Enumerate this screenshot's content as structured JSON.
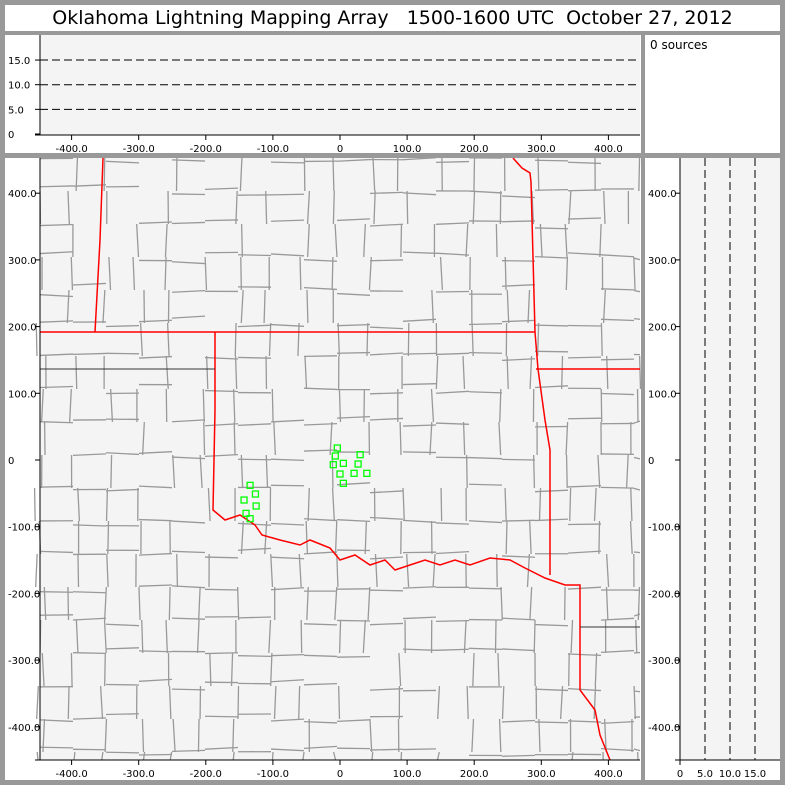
{
  "title": "Oklahoma Lightning Mapping Array   1500-1600 UTC  October 27, 2012",
  "source_count_label": "0 sources",
  "colors": {
    "background": "#999999",
    "plot_bg": "#f4f4f4",
    "state_border": "#ff0000",
    "county_border": "#999999",
    "source_marker": "#00ff00"
  },
  "chart_data": {
    "type": "scatter",
    "plan_view": {
      "x_ticks": [
        "-400.0",
        "-300.0",
        "-200.0",
        "-100.0",
        "0",
        "100.0",
        "200.0",
        "300.0",
        "400.0"
      ],
      "y_ticks": [
        "400.0",
        "300.0",
        "200.0",
        "100.0",
        "0",
        "-100.0",
        "-200.0",
        "-300.0",
        "-400.0"
      ],
      "xlim": [
        -450,
        445
      ],
      "ylim": [
        -445,
        450
      ],
      "points": [
        [
          -4,
          18
        ],
        [
          -7,
          6
        ],
        [
          -10,
          -7
        ],
        [
          5,
          -5
        ],
        [
          30,
          8
        ],
        [
          27,
          -6
        ],
        [
          0,
          -21
        ],
        [
          21,
          -20
        ],
        [
          40,
          -20
        ],
        [
          5,
          -35
        ],
        [
          -134,
          -38
        ],
        [
          -126,
          -51
        ],
        [
          -143,
          -60
        ],
        [
          -125,
          -69
        ],
        [
          -140,
          -80
        ],
        [
          -134,
          -88
        ]
      ]
    },
    "altitude_top": {
      "x_ticks": [
        "-400.0",
        "-300.0",
        "-200.0",
        "-100.0",
        "0",
        "100.0",
        "200.0",
        "300.0",
        "400.0"
      ],
      "y_ticks": [
        "15.0",
        "10.0",
        "5.0",
        "0"
      ],
      "ylim": [
        0,
        20
      ],
      "dashed_levels": [
        5,
        10,
        15
      ]
    },
    "altitude_side": {
      "x_ticks": [
        "0",
        "5.0",
        "10.0",
        "15.0"
      ],
      "y_ticks": [
        "400.0",
        "300.0",
        "200.0",
        "100.0",
        "0",
        "-100.0",
        "-200.0",
        "-300.0",
        "-400.0"
      ],
      "xlim": [
        0,
        20
      ],
      "dashed_levels": [
        5,
        10,
        15
      ]
    }
  }
}
